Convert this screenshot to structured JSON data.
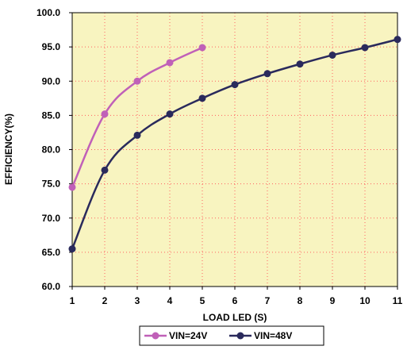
{
  "chart_data": {
    "type": "line",
    "title": "",
    "xlabel": "LOAD LED (S)",
    "ylabel": "EFFICIENCY(%)",
    "xlim": [
      1,
      11
    ],
    "ylim": [
      60,
      100
    ],
    "x_ticks": [
      "1",
      "2",
      "3",
      "4",
      "5",
      "6",
      "7",
      "8",
      "9",
      "10",
      "11"
    ],
    "y_ticks": [
      "60.0",
      "65.0",
      "70.0",
      "75.0",
      "80.0",
      "85.0",
      "90.0",
      "95.0",
      "100.0"
    ],
    "grid": true,
    "legend_position": "bottom-center",
    "plot_background": "#f8f4c0",
    "series": [
      {
        "name": "VIN=24V",
        "color": "#c060b8",
        "x": [
          1,
          2,
          3,
          4,
          5
        ],
        "y": [
          74.5,
          85.2,
          90.0,
          92.7,
          94.9
        ]
      },
      {
        "name": "VIN=48V",
        "color": "#2a2a5c",
        "x": [
          1,
          2,
          3,
          4,
          5,
          6,
          7,
          8,
          9,
          10,
          11
        ],
        "y": [
          65.5,
          77.0,
          82.1,
          85.2,
          87.5,
          89.5,
          91.1,
          92.5,
          93.8,
          94.9,
          96.1
        ]
      }
    ]
  }
}
